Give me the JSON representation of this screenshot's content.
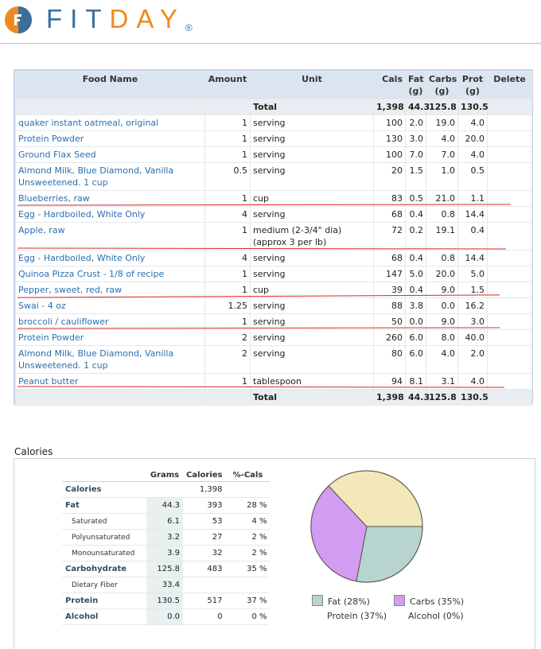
{
  "brand": {
    "name_fit": "FIT",
    "name_day": "DAY",
    "reg": "®"
  },
  "food_table": {
    "headers": {
      "food": "Food Name",
      "amount": "Amount",
      "unit": "Unit",
      "cals": "Cals",
      "fat": "Fat (g)",
      "carbs": "Carbs (g)",
      "prot": "Prot (g)",
      "delete": "Delete"
    },
    "total": {
      "label": "Total",
      "cals": "1,398",
      "fat": "44.3",
      "carbs": "125.8",
      "prot": "130.5"
    },
    "rows": [
      {
        "name": "quaker instant oatmeal, original",
        "amount": "1",
        "unit": "serving",
        "cals": "100",
        "fat": "2.0",
        "carbs": "19.0",
        "prot": "4.0"
      },
      {
        "name": "Protein Powder",
        "amount": "1",
        "unit": "serving",
        "cals": "130",
        "fat": "3.0",
        "carbs": "4.0",
        "prot": "20.0"
      },
      {
        "name": "Ground Flax Seed",
        "amount": "1",
        "unit": "serving",
        "cals": "100",
        "fat": "7.0",
        "carbs": "7.0",
        "prot": "4.0"
      },
      {
        "name": "Almond Milk, Blue Diamond, Vanilla Unsweetened. 1 cup",
        "amount": "0.5",
        "unit": "serving",
        "cals": "20",
        "fat": "1.5",
        "carbs": "1.0",
        "prot": "0.5"
      },
      {
        "name": "Blueberries, raw",
        "amount": "1",
        "unit": "cup",
        "cals": "83",
        "fat": "0.5",
        "carbs": "21.0",
        "prot": "1.1"
      },
      {
        "name": "Egg - Hardboiled, White Only",
        "amount": "4",
        "unit": "serving",
        "cals": "68",
        "fat": "0.4",
        "carbs": "0.8",
        "prot": "14.4"
      },
      {
        "name": "Apple, raw",
        "amount": "1",
        "unit": "medium (2-3/4\" dia) (approx 3 per lb)",
        "cals": "72",
        "fat": "0.2",
        "carbs": "19.1",
        "prot": "0.4"
      },
      {
        "name": "Egg - Hardboiled, White Only",
        "amount": "4",
        "unit": "serving",
        "cals": "68",
        "fat": "0.4",
        "carbs": "0.8",
        "prot": "14.4"
      },
      {
        "name": "Quinoa Pizza Crust - 1/8 of recipe",
        "amount": "1",
        "unit": "serving",
        "cals": "147",
        "fat": "5.0",
        "carbs": "20.0",
        "prot": "5.0"
      },
      {
        "name": "Pepper, sweet, red, raw",
        "amount": "1",
        "unit": "cup",
        "cals": "39",
        "fat": "0.4",
        "carbs": "9.0",
        "prot": "1.5"
      },
      {
        "name": "Swai - 4 oz",
        "amount": "1.25",
        "unit": "serving",
        "cals": "88",
        "fat": "3.8",
        "carbs": "0.0",
        "prot": "16.2"
      },
      {
        "name": "broccoli / cauliflower",
        "amount": "1",
        "unit": "serving",
        "cals": "50",
        "fat": "0.0",
        "carbs": "9.0",
        "prot": "3.0"
      },
      {
        "name": "Protein Powder",
        "amount": "2",
        "unit": "serving",
        "cals": "260",
        "fat": "6.0",
        "carbs": "8.0",
        "prot": "40.0"
      },
      {
        "name": "Almond Milk, Blue Diamond, Vanilla Unsweetened. 1 cup",
        "amount": "2",
        "unit": "serving",
        "cals": "80",
        "fat": "6.0",
        "carbs": "4.0",
        "prot": "2.0"
      },
      {
        "name": "Peanut butter",
        "amount": "1",
        "unit": "tablespoon",
        "cals": "94",
        "fat": "8.1",
        "carbs": "3.1",
        "prot": "4.0"
      }
    ]
  },
  "calories_section": {
    "title": "Calories",
    "headers": {
      "grams": "Grams",
      "calories": "Calories",
      "pct": "%-Cals"
    },
    "rows": [
      {
        "label": "Calories",
        "grams": "",
        "calories": "1,398",
        "pct": "",
        "sub": false
      },
      {
        "label": "Fat",
        "grams": "44.3",
        "calories": "393",
        "pct": "28 %",
        "sub": false
      },
      {
        "label": "Saturated",
        "grams": "6.1",
        "calories": "53",
        "pct": "4 %",
        "sub": true
      },
      {
        "label": "Polyunsaturated",
        "grams": "3.2",
        "calories": "27",
        "pct": "2 %",
        "sub": true
      },
      {
        "label": "Monounsaturated",
        "grams": "3.9",
        "calories": "32",
        "pct": "2 %",
        "sub": true
      },
      {
        "label": "Carbohydrate",
        "grams": "125.8",
        "calories": "483",
        "pct": "35 %",
        "sub": false
      },
      {
        "label": "Dietary Fiber",
        "grams": "33.4",
        "calories": "",
        "pct": "",
        "sub": true
      },
      {
        "label": "Protein",
        "grams": "130.5",
        "calories": "517",
        "pct": "37 %",
        "sub": false
      },
      {
        "label": "Alcohol",
        "grams": "0.0",
        "calories": "0",
        "pct": "0 %",
        "sub": false
      }
    ],
    "legend": {
      "fat": "Fat  (28%)",
      "carbs": "Carbs  (35%)",
      "protein": "Protein  (37%)",
      "alcohol": "Alcohol  (0%)"
    }
  },
  "chart_data": {
    "type": "pie",
    "categories": [
      "Fat",
      "Carbs",
      "Protein",
      "Alcohol"
    ],
    "values": [
      28,
      35,
      37,
      0
    ],
    "colors": [
      "#b8d4d0",
      "#d29cf0",
      "#f3e8b8",
      "#ffffff"
    ]
  }
}
